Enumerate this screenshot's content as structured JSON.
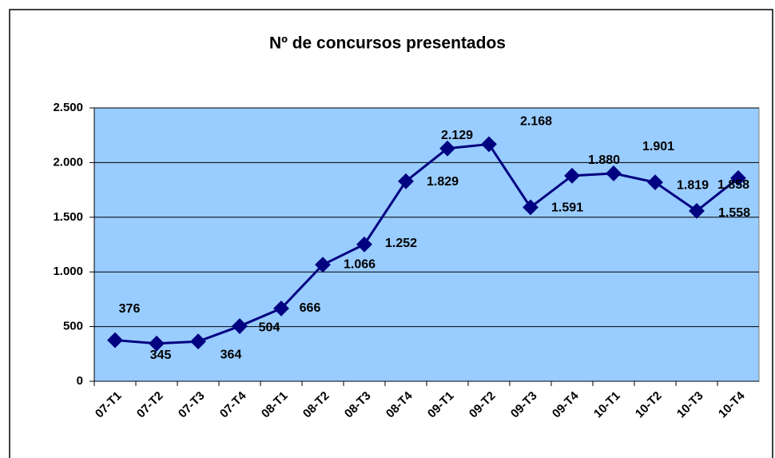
{
  "chart_data": {
    "type": "line",
    "title": "Nº de concursos presentados",
    "categories": [
      "07-T1",
      "07-T2",
      "07-T3",
      "07-T4",
      "08-T1",
      "08-T2",
      "08-T3",
      "08-T4",
      "09-T1",
      "09-T2",
      "09-T3",
      "09-T4",
      "10-T1",
      "10-T2",
      "10-T3",
      "10-T4"
    ],
    "series": [
      {
        "name": "Nº de concursos presentados",
        "color": "#000080",
        "values": [
          376,
          345,
          364,
          504,
          666,
          1066,
          1252,
          1829,
          2129,
          2168,
          1591,
          1880,
          1901,
          1819,
          1558,
          1858
        ],
        "value_labels": [
          "376",
          "345",
          "364",
          "504",
          "666",
          "1.066",
          "1.252",
          "1.829",
          "2.129",
          "2.168",
          "1.591",
          "1.880",
          "1.901",
          "1.819",
          "1.558",
          "1.858"
        ]
      }
    ],
    "ylim": [
      0,
      2500
    ],
    "yticks": [
      0,
      500,
      {
        "value": 1000,
        "label": "1.000"
      },
      {
        "value": 1500,
        "label": "1.500"
      },
      {
        "value": 2000,
        "label": "2.000"
      },
      {
        "value": 2500,
        "label": "2.500"
      }
    ],
    "grid": true,
    "plot_background": "#99ccff"
  }
}
